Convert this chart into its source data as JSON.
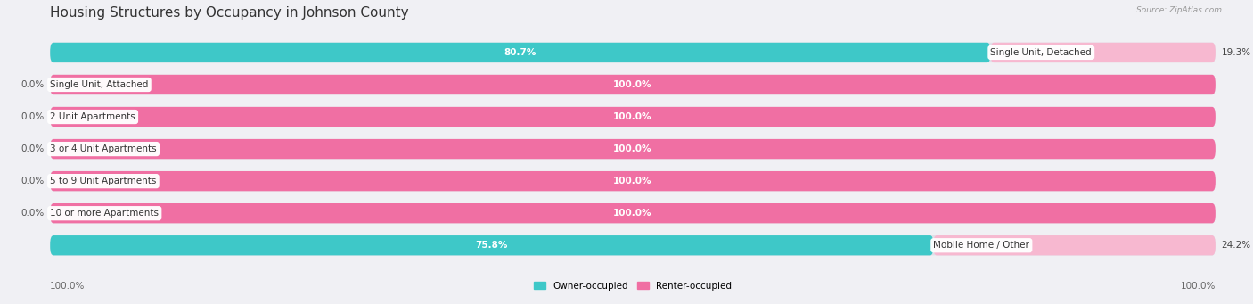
{
  "title": "Housing Structures by Occupancy in Johnson County",
  "source": "Source: ZipAtlas.com",
  "categories": [
    "Single Unit, Detached",
    "Single Unit, Attached",
    "2 Unit Apartments",
    "3 or 4 Unit Apartments",
    "5 to 9 Unit Apartments",
    "10 or more Apartments",
    "Mobile Home / Other"
  ],
  "owner_pct": [
    80.7,
    0.0,
    0.0,
    0.0,
    0.0,
    0.0,
    75.8
  ],
  "renter_pct": [
    19.3,
    100.0,
    100.0,
    100.0,
    100.0,
    100.0,
    24.2
  ],
  "owner_color": "#3EC8C8",
  "renter_color_bright": "#F06FA3",
  "renter_color_light": "#F7B8D0",
  "bg_color": "#F0F0F4",
  "bar_bg_color": "#E0E0E8",
  "title_fontsize": 11,
  "label_fontsize": 7.5,
  "axis_label_fontsize": 7.5,
  "figsize": [
    14.06,
    3.41
  ],
  "dpi": 100
}
